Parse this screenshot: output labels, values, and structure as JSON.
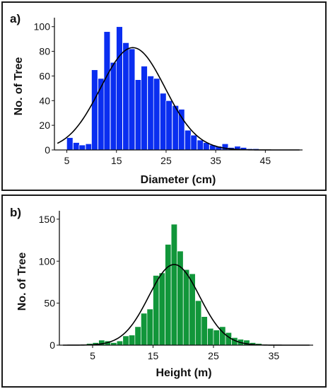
{
  "chart_data": [
    {
      "type": "bar",
      "panel_label": "a)",
      "xlabel": "Diameter (cm)",
      "ylabel": "No. of Tree",
      "xlim": [
        2.5,
        52.5
      ],
      "ylim": [
        0,
        105
      ],
      "xticks": [
        5,
        15,
        25,
        35,
        45
      ],
      "yticks": [
        0,
        20,
        40,
        60,
        80,
        100
      ],
      "bin_width": 1.25,
      "bins": [
        {
          "x": 5.6,
          "y": 10
        },
        {
          "x": 6.9,
          "y": 6
        },
        {
          "x": 8.1,
          "y": 4
        },
        {
          "x": 9.4,
          "y": 5
        },
        {
          "x": 10.6,
          "y": 65
        },
        {
          "x": 11.9,
          "y": 58
        },
        {
          "x": 13.1,
          "y": 96
        },
        {
          "x": 14.4,
          "y": 71
        },
        {
          "x": 15.6,
          "y": 100
        },
        {
          "x": 16.9,
          "y": 87
        },
        {
          "x": 18.1,
          "y": 82
        },
        {
          "x": 19.4,
          "y": 57
        },
        {
          "x": 20.6,
          "y": 68
        },
        {
          "x": 21.9,
          "y": 60
        },
        {
          "x": 23.1,
          "y": 58
        },
        {
          "x": 24.4,
          "y": 46
        },
        {
          "x": 25.6,
          "y": 40
        },
        {
          "x": 26.9,
          "y": 36
        },
        {
          "x": 28.1,
          "y": 33
        },
        {
          "x": 29.4,
          "y": 16
        },
        {
          "x": 30.6,
          "y": 12
        },
        {
          "x": 31.9,
          "y": 8
        },
        {
          "x": 33.1,
          "y": 6
        },
        {
          "x": 34.4,
          "y": 4
        },
        {
          "x": 35.6,
          "y": 3
        },
        {
          "x": 36.9,
          "y": 5
        },
        {
          "x": 38.1,
          "y": 2
        },
        {
          "x": 39.4,
          "y": 3
        },
        {
          "x": 40.6,
          "y": 2
        },
        {
          "x": 41.9,
          "y": 1
        },
        {
          "x": 43.1,
          "y": 1
        }
      ],
      "fit": {
        "type": "normal",
        "mean": 18.3,
        "sd": 6.5,
        "peak": 83
      },
      "bar_color": "#0a2ef0"
    },
    {
      "type": "bar",
      "panel_label": "b)",
      "xlabel": "Height (m)",
      "ylabel": "No. of Tree",
      "xlim": [
        -0.5,
        41.5
      ],
      "ylim": [
        0,
        160
      ],
      "xticks": [
        5,
        15,
        25,
        35
      ],
      "yticks": [
        0,
        50,
        100,
        150
      ],
      "bin_width": 1,
      "bins": [
        {
          "x": 4.5,
          "y": 2
        },
        {
          "x": 5.5,
          "y": 3
        },
        {
          "x": 6.5,
          "y": 6
        },
        {
          "x": 7.5,
          "y": 5
        },
        {
          "x": 8.5,
          "y": 3
        },
        {
          "x": 9.5,
          "y": 5
        },
        {
          "x": 10.5,
          "y": 11
        },
        {
          "x": 11.5,
          "y": 12
        },
        {
          "x": 12.5,
          "y": 22
        },
        {
          "x": 13.5,
          "y": 38
        },
        {
          "x": 14.5,
          "y": 43
        },
        {
          "x": 15.5,
          "y": 83
        },
        {
          "x": 16.5,
          "y": 86
        },
        {
          "x": 17.5,
          "y": 120
        },
        {
          "x": 18.5,
          "y": 144
        },
        {
          "x": 19.5,
          "y": 112
        },
        {
          "x": 20.5,
          "y": 90
        },
        {
          "x": 21.5,
          "y": 85
        },
        {
          "x": 22.5,
          "y": 53
        },
        {
          "x": 23.5,
          "y": 34
        },
        {
          "x": 24.5,
          "y": 20
        },
        {
          "x": 25.5,
          "y": 18
        },
        {
          "x": 26.5,
          "y": 22
        },
        {
          "x": 27.5,
          "y": 15
        },
        {
          "x": 28.5,
          "y": 9
        },
        {
          "x": 29.5,
          "y": 7
        },
        {
          "x": 30.5,
          "y": 6
        },
        {
          "x": 31.5,
          "y": 3
        },
        {
          "x": 32.5,
          "y": 2
        },
        {
          "x": 33.5,
          "y": 1
        }
      ],
      "fit": {
        "type": "normal",
        "mean": 18.5,
        "sd": 4.2,
        "peak": 96
      },
      "bar_color": "#11963a"
    }
  ]
}
